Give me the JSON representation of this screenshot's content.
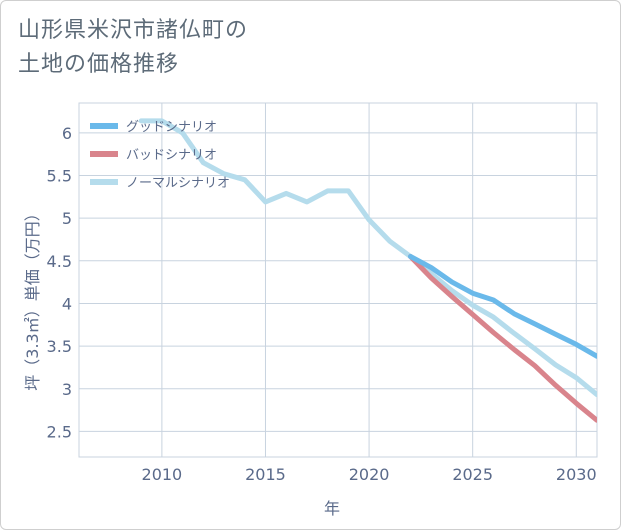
{
  "title_lines": [
    "山形県米沢市諸仏町の",
    "土地の価格推移"
  ],
  "chart_data": {
    "type": "line",
    "xlabel": "年",
    "ylabel": "坪（3.3㎡）単価（万円）",
    "xlim": [
      2006,
      2031
    ],
    "ylim": [
      2.2,
      6.35
    ],
    "x_ticks": [
      2010,
      2015,
      2020,
      2025,
      2030
    ],
    "y_ticks": [
      2.5,
      3,
      3.5,
      4,
      4.5,
      5,
      5.5,
      6
    ],
    "y_tick_labels": [
      "2.5",
      "3",
      "3.5",
      "4",
      "4.5",
      "5",
      "5.5",
      "6"
    ],
    "grid": true,
    "legend_position": "top-left",
    "series": [
      {
        "name": "グッドシナリオ",
        "color": "#6ab9ea",
        "x": [
          2022,
          2023,
          2024,
          2025,
          2026,
          2027,
          2028,
          2029,
          2030,
          2031
        ],
        "y": [
          4.55,
          4.42,
          4.25,
          4.12,
          4.04,
          3.88,
          3.76,
          3.64,
          3.52,
          3.38
        ]
      },
      {
        "name": "バッドシナリオ",
        "color": "#d9848c",
        "x": [
          2022,
          2023,
          2024,
          2025,
          2026,
          2027,
          2028,
          2029,
          2030,
          2031
        ],
        "y": [
          4.55,
          4.3,
          4.08,
          3.87,
          3.66,
          3.46,
          3.27,
          3.04,
          2.83,
          2.63
        ]
      },
      {
        "name": "ノーマルシナリオ",
        "color": "#b5dcec",
        "x": [
          2009,
          2010,
          2011,
          2012,
          2013,
          2014,
          2015,
          2016,
          2017,
          2018,
          2019,
          2020,
          2021,
          2022,
          2023,
          2024,
          2025,
          2026,
          2027,
          2028,
          2029,
          2030,
          2031
        ],
        "y": [
          6.14,
          6.14,
          6.0,
          5.65,
          5.52,
          5.45,
          5.19,
          5.29,
          5.19,
          5.32,
          5.32,
          4.98,
          4.73,
          4.55,
          4.35,
          4.15,
          3.98,
          3.84,
          3.65,
          3.47,
          3.28,
          3.13,
          2.93
        ]
      }
    ]
  }
}
